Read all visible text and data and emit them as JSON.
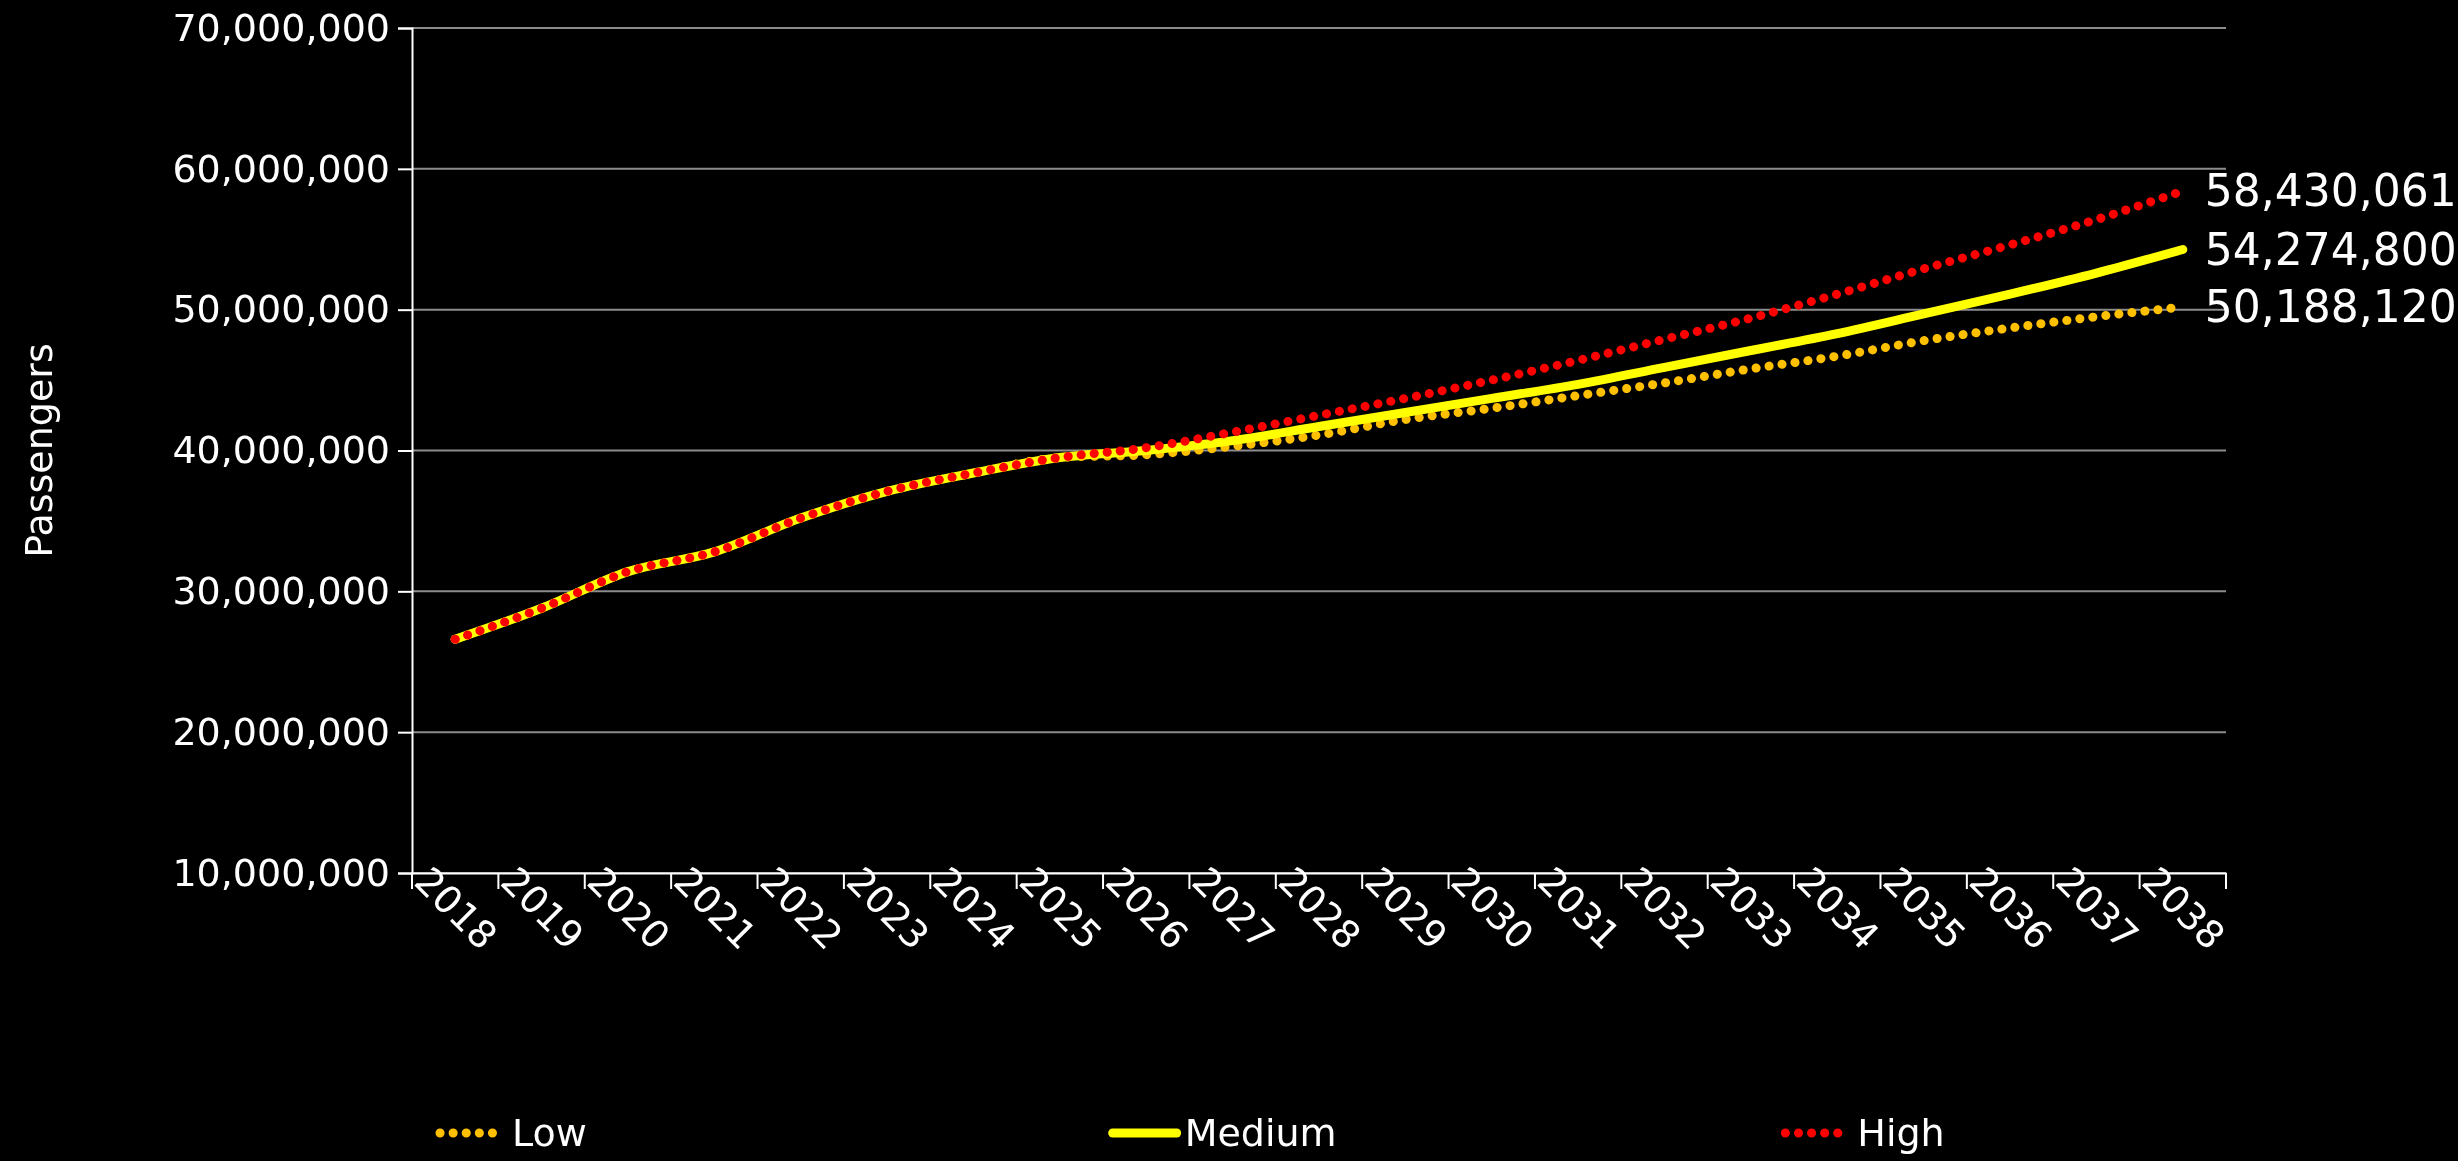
{
  "chart_data": {
    "type": "line",
    "ylabel": "Passengers",
    "categories": [
      "2018",
      "2019",
      "2020",
      "2021",
      "2022",
      "2023",
      "2024",
      "2025",
      "2026",
      "2027",
      "2028",
      "2029",
      "2030",
      "2031",
      "2032",
      "2033",
      "2034",
      "2035",
      "2036",
      "2037",
      "2038"
    ],
    "series": [
      {
        "name": "Low",
        "color": "#ffc000",
        "line_style": "dotted",
        "values": [
          26600000,
          28800000,
          31400000,
          32800000,
          35200000,
          37100000,
          38400000,
          39500000,
          39700000,
          40300000,
          41100000,
          42200000,
          43000000,
          43900000,
          44800000,
          45800000,
          46700000,
          47800000,
          48700000,
          49500000,
          50188120
        ],
        "value_labels": [
          null,
          null,
          null,
          null,
          null,
          null,
          null,
          null,
          null,
          null,
          null,
          null,
          null,
          null,
          null,
          null,
          null,
          null,
          null,
          null,
          "50,188,120"
        ]
      },
      {
        "name": "Medium",
        "color": "#ffff00",
        "line_style": "solid",
        "values": [
          26600000,
          28800000,
          31400000,
          32800000,
          35200000,
          37100000,
          38400000,
          39500000,
          40000000,
          40700000,
          41700000,
          42700000,
          43700000,
          44700000,
          45900000,
          47100000,
          48300000,
          49700000,
          51100000,
          52600000,
          54274800
        ],
        "value_labels": [
          null,
          null,
          null,
          null,
          null,
          null,
          null,
          null,
          null,
          null,
          null,
          null,
          null,
          null,
          null,
          null,
          null,
          null,
          null,
          null,
          "54,274,800"
        ]
      },
      {
        "name": "High",
        "color": "#ff0000",
        "line_style": "dotted",
        "values": [
          26600000,
          28800000,
          31400000,
          32800000,
          35200000,
          37100000,
          38400000,
          39500000,
          40200000,
          41300000,
          42500000,
          43700000,
          45000000,
          46400000,
          47900000,
          49400000,
          51100000,
          52900000,
          54600000,
          56400000,
          58430061
        ],
        "value_labels": [
          null,
          null,
          null,
          null,
          null,
          null,
          null,
          null,
          null,
          null,
          null,
          null,
          null,
          null,
          null,
          null,
          null,
          null,
          null,
          null,
          "58,430,061"
        ]
      }
    ],
    "ylim": [
      10000000,
      70000000
    ],
    "yticks": [
      {
        "value": 10000000,
        "label": "10,000,000"
      },
      {
        "value": 20000000,
        "label": "20,000,000"
      },
      {
        "value": 30000000,
        "label": "30,000,000"
      },
      {
        "value": 40000000,
        "label": "40,000,000"
      },
      {
        "value": 50000000,
        "label": "50,000,000"
      },
      {
        "value": 60000000,
        "label": "60,000,000"
      },
      {
        "value": 70000000,
        "label": "70,000,000"
      }
    ],
    "grid": "y",
    "legend": "bottom"
  }
}
